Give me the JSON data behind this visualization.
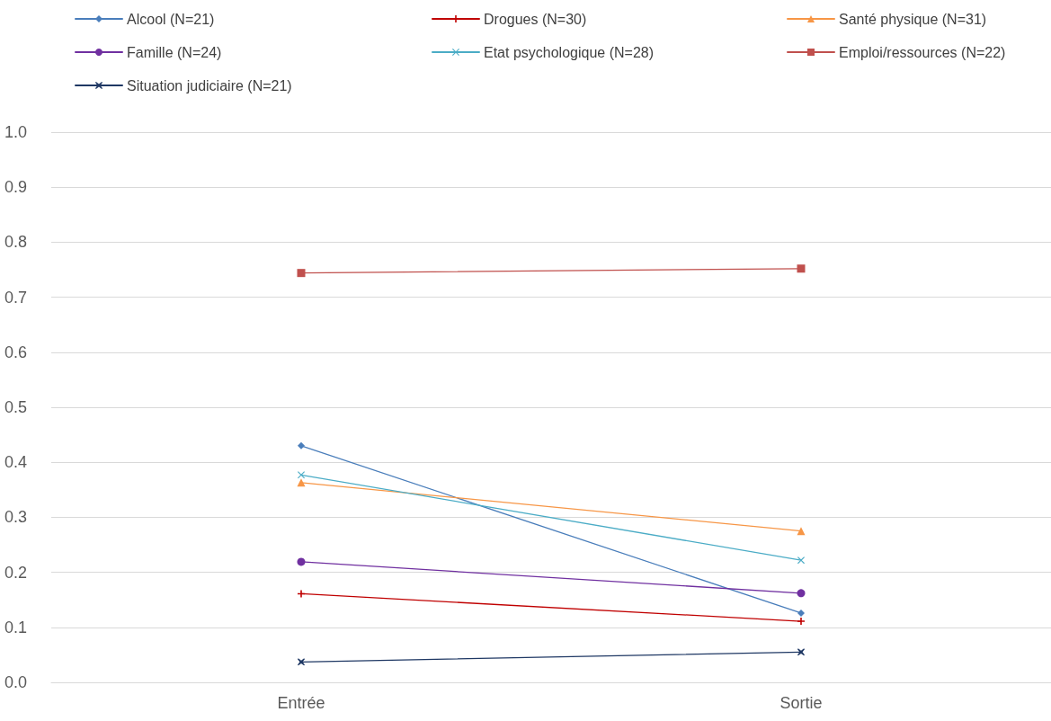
{
  "chart_data": {
    "type": "line",
    "categories": [
      "Entrée",
      "Sortie"
    ],
    "series": [
      {
        "name": "Alcool (N=21)",
        "color": "#4a7ebb",
        "marker": "diamond",
        "values": [
          0.43,
          0.126
        ]
      },
      {
        "name": "Drogues (N=30)",
        "color": "#c00000",
        "marker": "plus",
        "values": [
          0.161,
          0.111
        ]
      },
      {
        "name": "Santé physique (N=31)",
        "color": "#f79646",
        "marker": "triangle",
        "values": [
          0.363,
          0.275
        ]
      },
      {
        "name": "Famille (N=24)",
        "color": "#7030a0",
        "marker": "circle",
        "values": [
          0.219,
          0.162
        ]
      },
      {
        "name": "Etat psychologique (N=28)",
        "color": "#4bacc6",
        "marker": "x",
        "values": [
          0.377,
          0.222
        ]
      },
      {
        "name": "Emploi/ressources (N=22)",
        "color": "#c0504d",
        "marker": "square",
        "values": [
          0.744,
          0.752
        ]
      },
      {
        "name": "Situation judiciaire (N=21)",
        "color": "#1f3864",
        "marker": "cross",
        "values": [
          0.037,
          0.055
        ]
      }
    ],
    "ylim": [
      0,
      1
    ],
    "yticks": [
      {
        "value": 0,
        "label": "0.0"
      },
      {
        "value": 0.1,
        "label": "0.1"
      },
      {
        "value": 0.2,
        "label": "0.2"
      },
      {
        "value": 0.3,
        "label": "0.3"
      },
      {
        "value": 0.4,
        "label": "0.4"
      },
      {
        "value": 0.5,
        "label": "0.5"
      },
      {
        "value": 0.6,
        "label": "0.6"
      },
      {
        "value": 0.7,
        "label": "0.7"
      },
      {
        "value": 0.8,
        "label": "0.8"
      },
      {
        "value": 0.9,
        "label": "0.9"
      },
      {
        "value": 1,
        "label": "1.0"
      }
    ],
    "grid": "y",
    "legend": "top",
    "line_style": "solid"
  }
}
